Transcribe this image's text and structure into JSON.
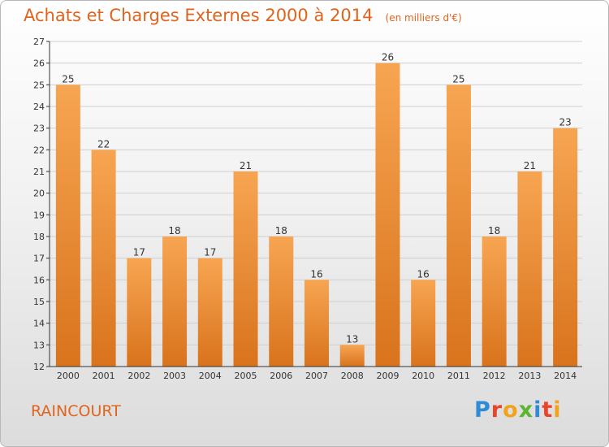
{
  "header": {
    "title": "Achats et Charges Externes 2000 à 2014",
    "unit": "(en milliers d'€)"
  },
  "footer": {
    "commune": "RAINCOURT",
    "logo_letters": [
      "P",
      "r",
      "o",
      "x",
      "i",
      "t",
      "i"
    ],
    "logo_colors": [
      "#2e8bd6",
      "#e8462b",
      "#f3a21b",
      "#5cb531",
      "#2e8bd6",
      "#e8462b",
      "#f3a21b"
    ]
  },
  "chart_data": {
    "type": "bar",
    "title": "Achats et Charges Externes 2000 à 2014",
    "subtitle": "(en milliers d'€)",
    "categories": [
      "2000",
      "2001",
      "2002",
      "2003",
      "2004",
      "2005",
      "2006",
      "2007",
      "2008",
      "2009",
      "2010",
      "2011",
      "2012",
      "2013",
      "2014"
    ],
    "values": [
      25,
      22,
      17,
      18,
      17,
      21,
      18,
      16,
      13,
      26,
      16,
      25,
      18,
      21,
      23
    ],
    "ylim": [
      12,
      27
    ],
    "yticks": [
      12,
      13,
      14,
      15,
      16,
      17,
      18,
      19,
      20,
      21,
      22,
      23,
      24,
      25,
      26,
      27
    ],
    "grid": true,
    "bar_color_top": "#f7a552",
    "bar_color_bottom": "#d9731c",
    "text_color": "#e0641e",
    "grid_color": "#cfcfcf",
    "axis_color": "#333333"
  }
}
